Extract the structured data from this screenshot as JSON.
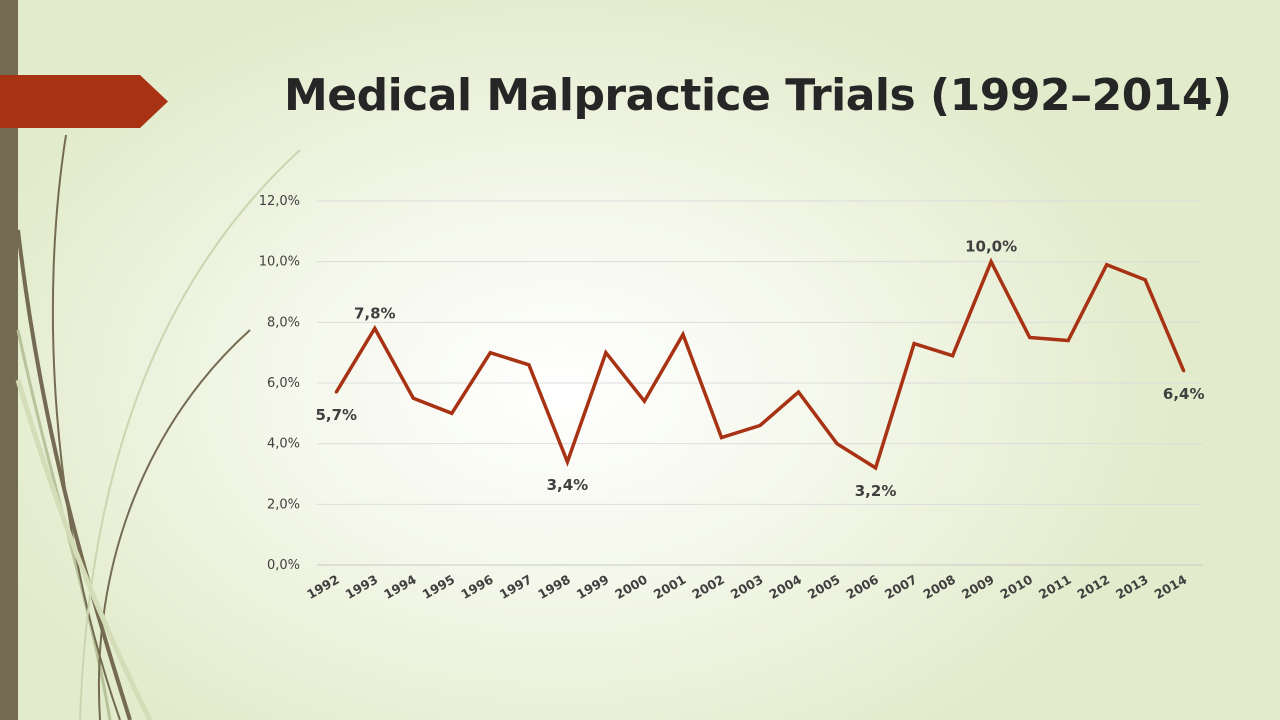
{
  "slide": {
    "title": "Medical Malpractice Trials (1992–2014)",
    "accent_color": "#a83214",
    "sidebar_color": "#746b52"
  },
  "chart_data": {
    "type": "line",
    "title": "",
    "xlabel": "",
    "ylabel": "",
    "categories": [
      "1992",
      "1993",
      "1994",
      "1995",
      "1996",
      "1997",
      "1998",
      "1999",
      "2000",
      "2001",
      "2002",
      "2003",
      "2004",
      "2005",
      "2006",
      "2007",
      "2008",
      "2009",
      "2010",
      "2011",
      "2012",
      "2013",
      "2014"
    ],
    "series": [
      {
        "values": [
          5.7,
          7.8,
          5.5,
          5.0,
          7.0,
          6.6,
          3.4,
          7.0,
          5.4,
          7.6,
          4.2,
          4.6,
          5.7,
          4.0,
          3.2,
          7.3,
          6.9,
          10.0,
          7.5,
          7.4,
          9.9,
          9.4,
          6.4
        ],
        "color": "#a83214"
      }
    ],
    "ylim": [
      0,
      12
    ],
    "ytick_step": 2,
    "ytick_labels": [
      "0,0%",
      "2,0%",
      "4,0%",
      "6,0%",
      "8,0%",
      "10,0%",
      "12,0%"
    ],
    "grid": true,
    "data_labels": [
      {
        "index": 0,
        "text": "5,7%",
        "position": "below"
      },
      {
        "index": 1,
        "text": "7,8%",
        "position": "above"
      },
      {
        "index": 6,
        "text": "3,4%",
        "position": "below"
      },
      {
        "index": 14,
        "text": "3,2%",
        "position": "below"
      },
      {
        "index": 17,
        "text": "10,0%",
        "position": "above"
      },
      {
        "index": 22,
        "text": "6,4%",
        "position": "below"
      }
    ]
  }
}
